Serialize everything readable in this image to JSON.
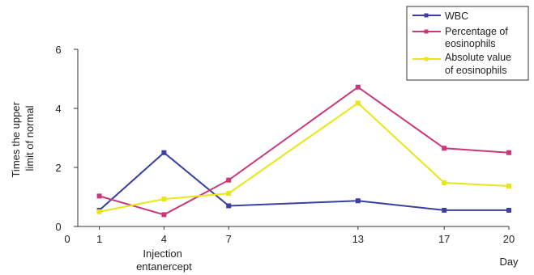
{
  "chart_data": {
    "type": "line",
    "ylabel_lines": [
      "Times the upper",
      "limit of normal"
    ],
    "xlabel": "Day",
    "x_ticks": [
      0,
      1,
      4,
      7,
      13,
      17,
      20
    ],
    "y_ticks": [
      0,
      2,
      4,
      6
    ],
    "xlim": [
      0,
      20
    ],
    "ylim": [
      0,
      6
    ],
    "grid": false,
    "legend_position": "top-right",
    "annotation": {
      "lines": [
        "Injection",
        "entanercept"
      ],
      "x": 4
    },
    "x": [
      1,
      4,
      7,
      13,
      17,
      20
    ],
    "series": [
      {
        "name": "WBC",
        "color": "#3a3fa3",
        "marker": "square",
        "values": [
          0.55,
          2.5,
          0.7,
          0.87,
          0.55,
          0.55
        ]
      },
      {
        "name_lines": [
          "Percentage of",
          "eosinophils"
        ],
        "color": "#c8377a",
        "marker": "square",
        "values": [
          1.03,
          0.4,
          1.57,
          4.72,
          2.65,
          2.5
        ]
      },
      {
        "name_lines": [
          "Absolute value",
          "of eosinophils"
        ],
        "color": "#e8e615",
        "marker": "square",
        "values": [
          0.5,
          0.93,
          1.12,
          4.18,
          1.48,
          1.37
        ]
      }
    ]
  }
}
